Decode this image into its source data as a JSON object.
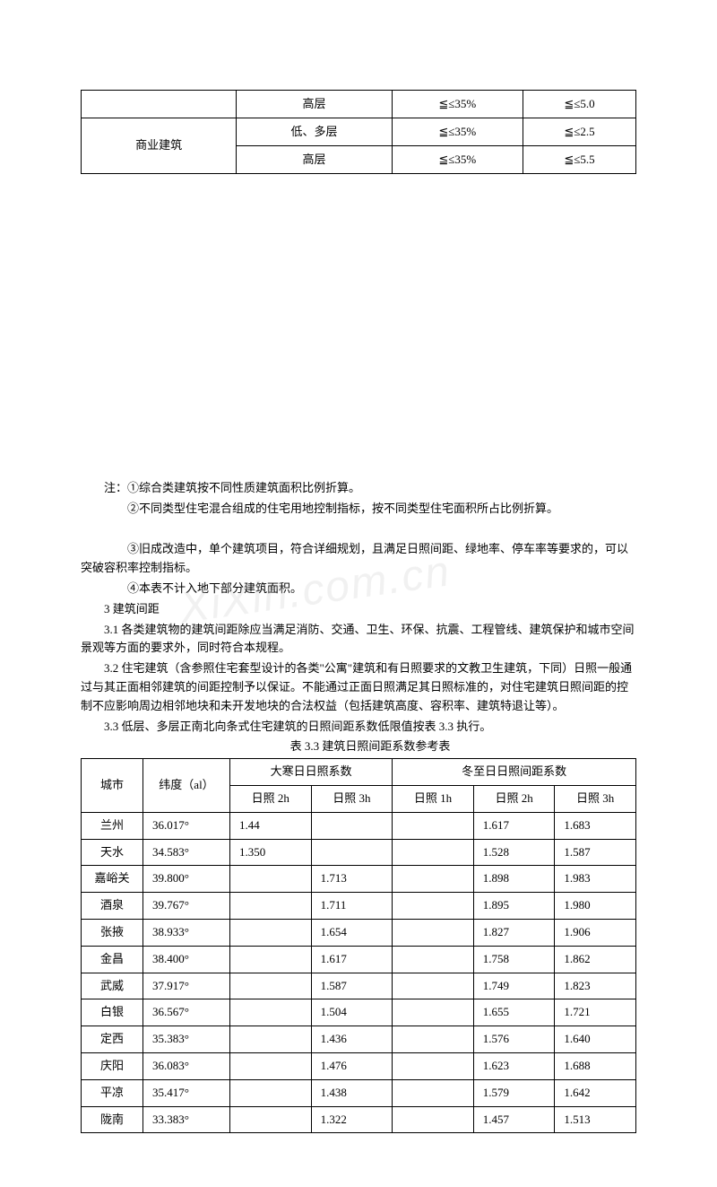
{
  "table1": {
    "rows": [
      {
        "c1": "",
        "c2": "高层",
        "c3": "≦≤35%",
        "c4": "≦≤5.0"
      },
      {
        "c1": "商业建筑",
        "c2": "低、多层",
        "c3": "≦≤35%",
        "c4": "≦≤2.5"
      },
      {
        "c1": "",
        "c2": "高层",
        "c3": "≦≤35%",
        "c4": "≦≤5.5"
      }
    ]
  },
  "notes": {
    "n1": "注：①综合类建筑按不同性质建筑面积比例折算。",
    "n2": "②不同类型住宅混合组成的住宅用地控制指标，按不同类型住宅面积所占比例折算。",
    "n3": "③旧成改造中，单个建筑项目，符合详细规划，且满足日照间距、绿地率、停车率等要求的，可以突破容积率控制指标。",
    "n4": "④本表不计入地下部分建筑面积。"
  },
  "section": {
    "h": "3 建筑间距",
    "p1": "3.1  各类建筑物的建筑间距除应当满足消防、交通、卫生、环保、抗震、工程管线、建筑保护和城市空间景观等方面的要求外，同时符合本规程。",
    "p2": "3.2 住宅建筑（含参照住宅套型设计的各类\"公寓\"建筑和有日照要求的文教卫生建筑，下同）日照一般通过与其正面相邻建筑的间距控制予以保证。不能通过正面日照满足其日照标准的，对住宅建筑日照间距的控制不应影响周边相邻地块和未开发地块的合法权益（包括建筑高度、容积率、建筑特退让等）。",
    "p3": "3.3 低层、多层正南北向条式住宅建筑的日照间距系数低限值按表 3.3 执行。",
    "title": "表 3.3 建筑日照间距系数参考表"
  },
  "table2": {
    "headers": {
      "city": "城市",
      "lat": "纬度（al）",
      "dahan": "大寒日日照系数",
      "dongzhi": "冬至日日照间距系数",
      "rz2h": "日照 2h",
      "rz3h": "日照 3h",
      "rz1h": "日照 1h"
    },
    "rows": [
      {
        "city": "兰州",
        "lat": "36.017°",
        "d2": "1.44",
        "d3": "",
        "z1": "",
        "z2": "1.617",
        "z3": "1.683"
      },
      {
        "city": "天水",
        "lat": "34.583°",
        "d2": "1.350",
        "d3": "",
        "z1": "",
        "z2": "1.528",
        "z3": "1.587"
      },
      {
        "city": "嘉峪关",
        "lat": "39.800°",
        "d2": "",
        "d3": "1.713",
        "z1": "",
        "z2": "1.898",
        "z3": "1.983"
      },
      {
        "city": "酒泉",
        "lat": "39.767°",
        "d2": "",
        "d3": "1.711",
        "z1": "",
        "z2": "1.895",
        "z3": "1.980"
      },
      {
        "city": "张掖",
        "lat": "38.933°",
        "d2": "",
        "d3": "1.654",
        "z1": "",
        "z2": "1.827",
        "z3": "1.906"
      },
      {
        "city": "金昌",
        "lat": "38.400°",
        "d2": "",
        "d3": "1.617",
        "z1": "",
        "z2": "1.758",
        "z3": "1.862"
      },
      {
        "city": "武威",
        "lat": "37.917°",
        "d2": "",
        "d3": "1.587",
        "z1": "",
        "z2": "1.749",
        "z3": "1.823"
      },
      {
        "city": "白银",
        "lat": "36.567°",
        "d2": "",
        "d3": "1.504",
        "z1": "",
        "z2": "1.655",
        "z3": "1.721"
      },
      {
        "city": "定西",
        "lat": "35.383°",
        "d2": "",
        "d3": "1.436",
        "z1": "",
        "z2": "1.576",
        "z3": "1.640"
      },
      {
        "city": "庆阳",
        "lat": "36.083°",
        "d2": "",
        "d3": "1.476",
        "z1": "",
        "z2": "1.623",
        "z3": "1.688"
      },
      {
        "city": "平凉",
        "lat": "35.417°",
        "d2": "",
        "d3": "1.438",
        "z1": "",
        "z2": "1.579",
        "z3": "1.642"
      },
      {
        "city": "陇南",
        "lat": "33.383°",
        "d2": "",
        "d3": "1.322",
        "z1": "",
        "z2": "1.457",
        "z3": "1.513"
      }
    ]
  }
}
